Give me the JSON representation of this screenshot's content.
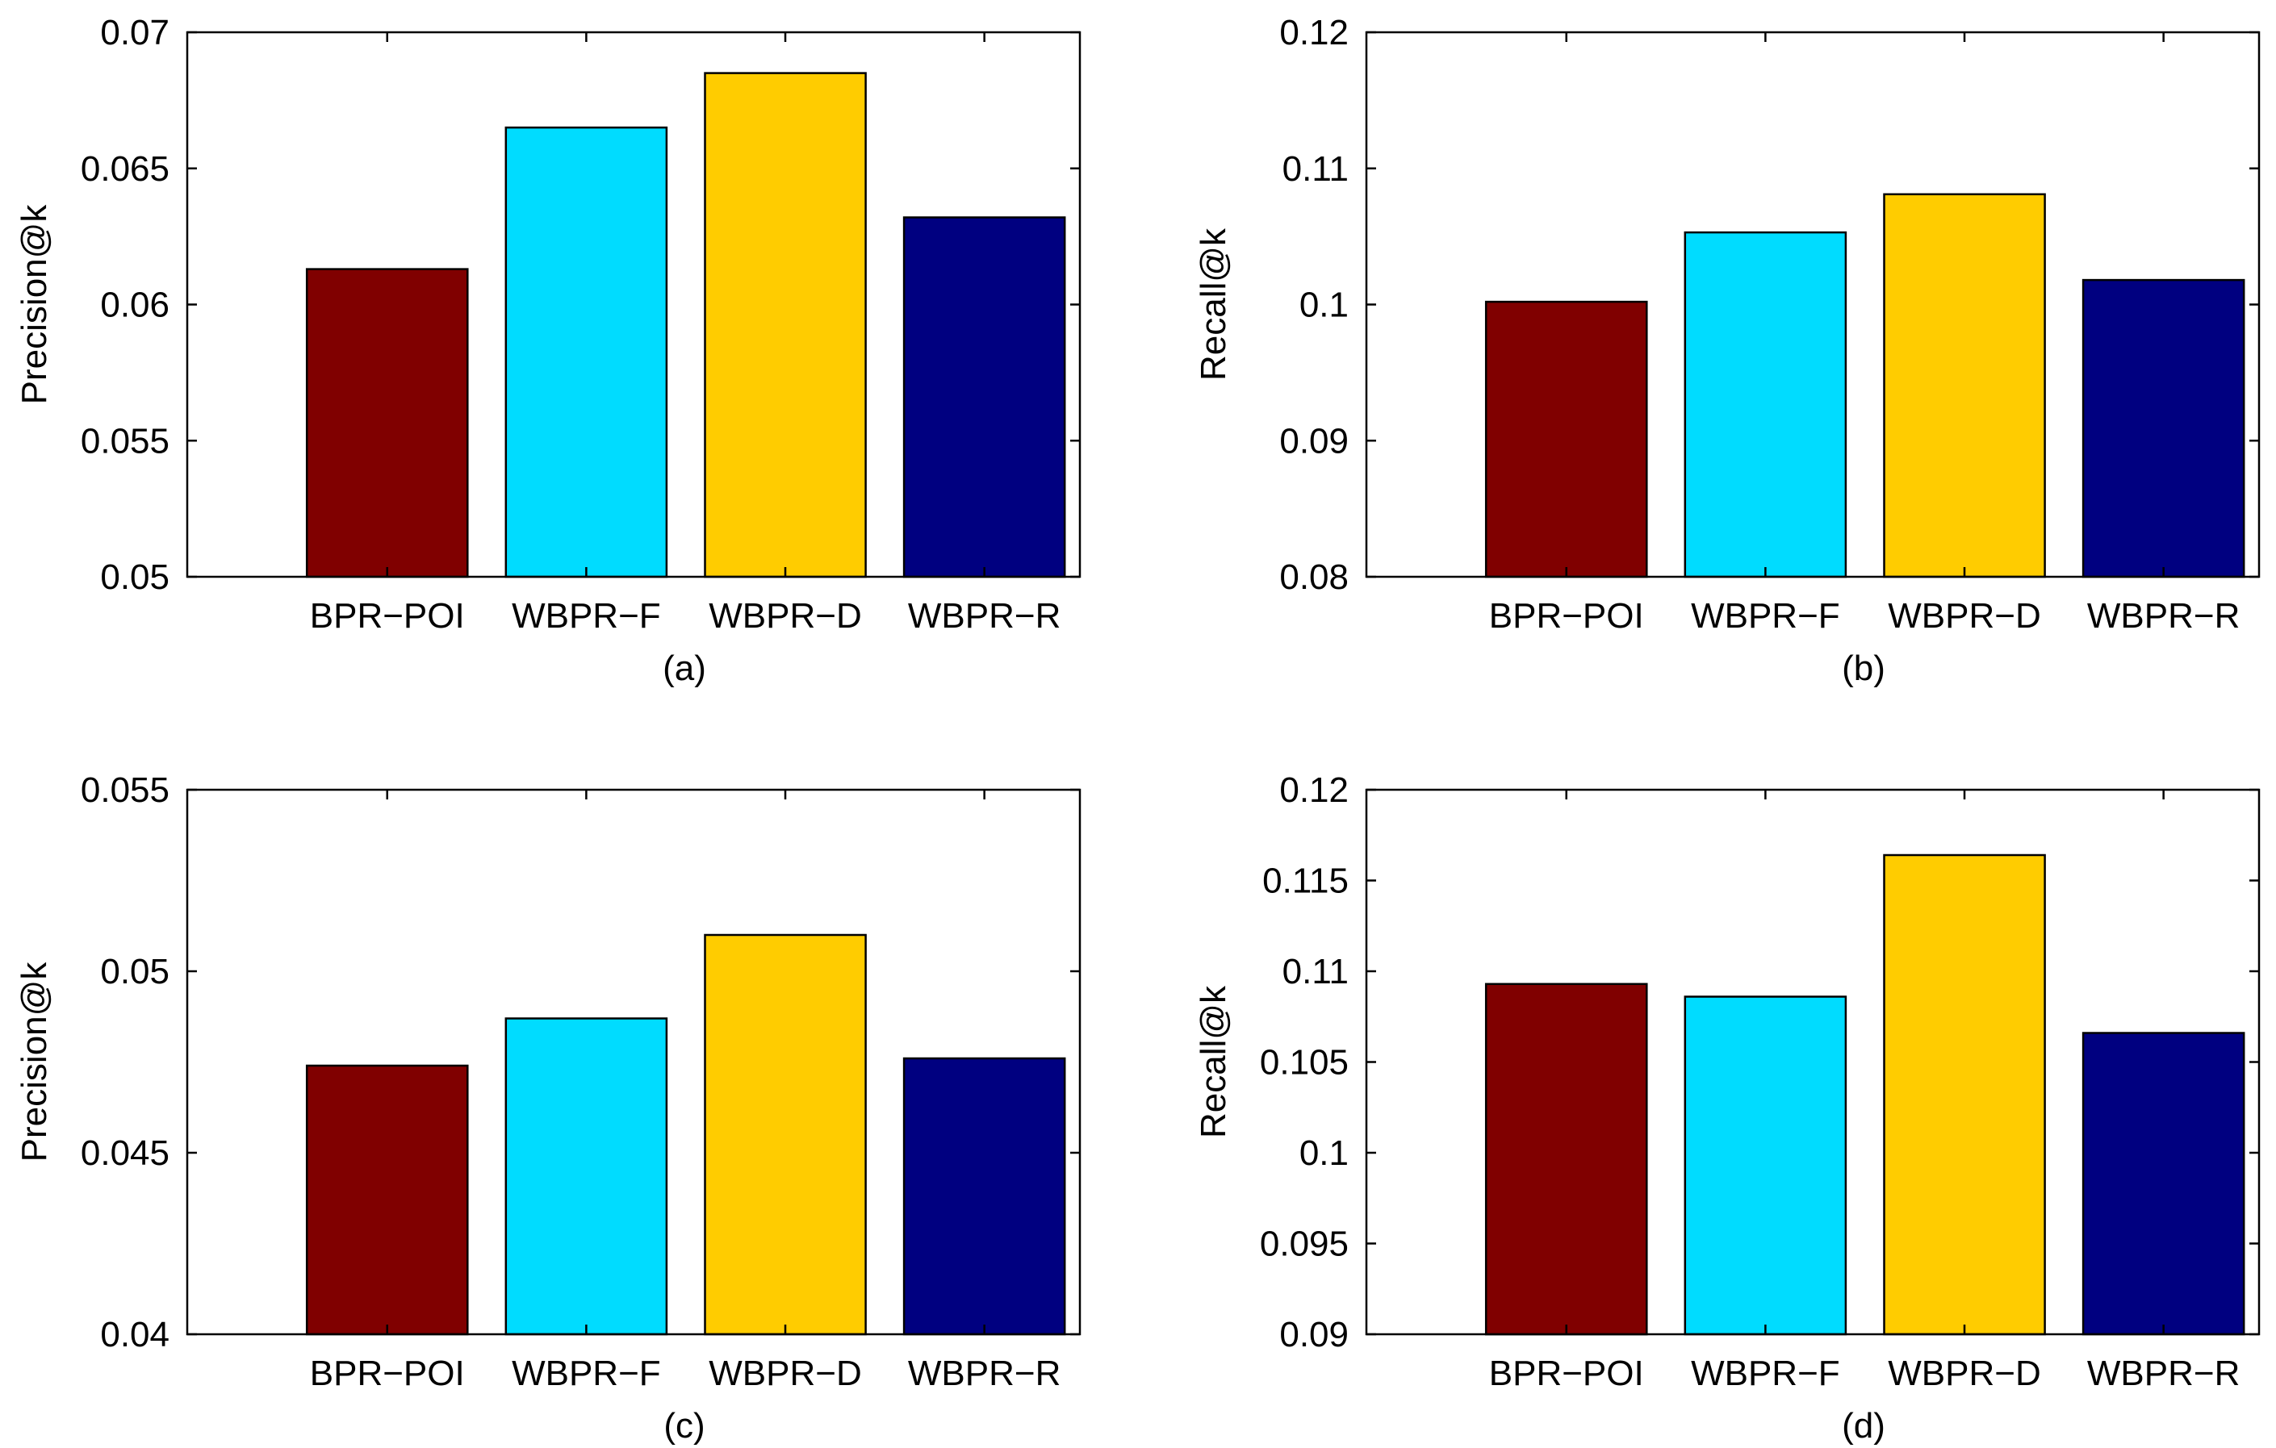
{
  "colors": {
    "BPR-POI": "#800000",
    "WBPR-F": "#00dcff",
    "WBPR-D": "#ffcc00",
    "WBPR-R": "#000080",
    "axis": "#000000",
    "background": "#ffffff"
  },
  "chart_data": [
    {
      "type": "bar",
      "caption": "(a)",
      "categories": [
        "BPR−POI",
        "WBPR−F",
        "WBPR−D",
        "WBPR−R"
      ],
      "values": [
        0.0613,
        0.0665,
        0.0685,
        0.0632
      ],
      "ylabel": "Precision@k",
      "xlabel": "",
      "ylim": [
        0.05,
        0.07
      ],
      "yticks": [
        "0.05",
        "0.055",
        "0.06",
        "0.065",
        "0.07"
      ],
      "ytick_values": [
        0.05,
        0.055,
        0.06,
        0.065,
        0.07
      ],
      "grid": false
    },
    {
      "type": "bar",
      "caption": "(b)",
      "categories": [
        "BPR−POI",
        "WBPR−F",
        "WBPR−D",
        "WBPR−R"
      ],
      "values": [
        0.1002,
        0.1053,
        0.1081,
        0.1018
      ],
      "ylabel": "Recall@k",
      "xlabel": "",
      "ylim": [
        0.08,
        0.12
      ],
      "yticks": [
        "0.08",
        "0.09",
        "0.1",
        "0.11",
        "0.12"
      ],
      "ytick_values": [
        0.08,
        0.09,
        0.1,
        0.11,
        0.12
      ],
      "grid": false
    },
    {
      "type": "bar",
      "caption": "(c)",
      "categories": [
        "BPR−POI",
        "WBPR−F",
        "WBPR−D",
        "WBPR−R"
      ],
      "values": [
        0.0474,
        0.0487,
        0.051,
        0.0476
      ],
      "ylabel": "Precision@k",
      "xlabel": "",
      "ylim": [
        0.04,
        0.055
      ],
      "yticks": [
        "0.04",
        "0.045",
        "0.05",
        "0.055"
      ],
      "ytick_values": [
        0.04,
        0.045,
        0.05,
        0.055
      ],
      "grid": false
    },
    {
      "type": "bar",
      "caption": "(d)",
      "categories": [
        "BPR−POI",
        "WBPR−F",
        "WBPR−D",
        "WBPR−R"
      ],
      "values": [
        0.1093,
        0.1086,
        0.1164,
        0.1066
      ],
      "ylabel": "Recall@k",
      "xlabel": "",
      "ylim": [
        0.09,
        0.12
      ],
      "yticks": [
        "0.09",
        "0.095",
        "0.1",
        "0.105",
        "0.11",
        "0.115",
        "0.12"
      ],
      "ytick_values": [
        0.09,
        0.095,
        0.1,
        0.105,
        0.11,
        0.115,
        0.12
      ],
      "grid": false
    }
  ]
}
